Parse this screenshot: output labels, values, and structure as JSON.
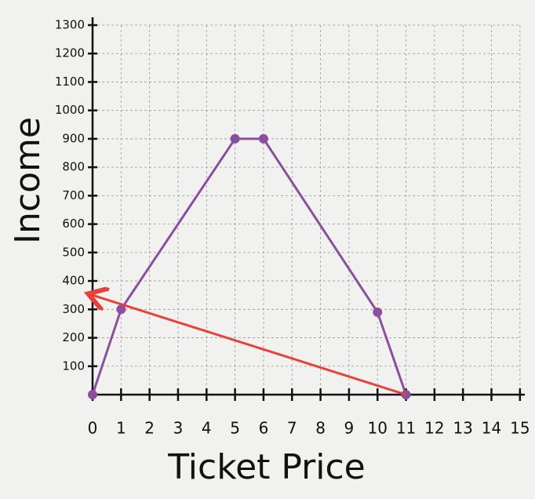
{
  "chart_data": {
    "type": "line",
    "x_label": "Ticket Price",
    "y_label": "Income",
    "x": [
      0,
      1,
      5,
      6,
      10,
      11
    ],
    "values": [
      0,
      300,
      900,
      900,
      290,
      0
    ],
    "color": "#8a4f9e",
    "arrow": {
      "x": [
        11,
        0
      ],
      "y": [
        0,
        350
      ],
      "color": "#e8403a"
    },
    "xlim": [
      0,
      15.5
    ],
    "ylim": [
      0,
      1300
    ],
    "xticks": [
      0,
      1,
      2,
      3,
      4,
      5,
      6,
      7,
      8,
      9,
      10,
      11,
      12,
      13,
      14,
      15
    ],
    "yticks": [
      100,
      200,
      300,
      400,
      500,
      600,
      700,
      800,
      900,
      1000,
      1100,
      1200,
      1300
    ],
    "grid": true
  }
}
